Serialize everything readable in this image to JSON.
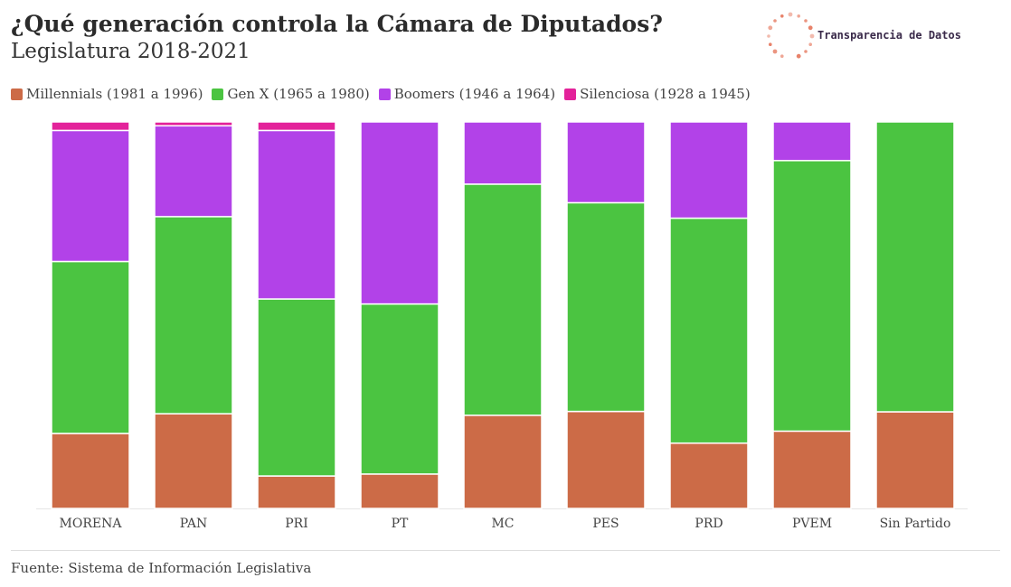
{
  "title": "¿Qué generación controla la Cámara de Diputados?",
  "subtitle": "Legislatura 2018-2021",
  "logo": {
    "text": "Transparencia de Datos",
    "icon": "dotted-circle-icon",
    "color": "#e8826a"
  },
  "source": "Fuente: Sistema de Información Legislativa",
  "chart_data": {
    "type": "bar",
    "stacked": true,
    "normalized": true,
    "categories": [
      "MORENA",
      "PAN",
      "PRI",
      "PT",
      "MC",
      "PES",
      "PRD",
      "PVEM",
      "Sin Partido"
    ],
    "ylim": [
      0,
      100
    ],
    "grid": false,
    "legend_position": "top-left",
    "series": [
      {
        "name": "Millennials (1981 a 1996)",
        "color": "#cc6b47",
        "values": [
          19.4,
          24.5,
          8.4,
          8.9,
          24.1,
          25.1,
          16.9,
          20.0,
          25.0
        ]
      },
      {
        "name": "Gen X (1965 a 1980)",
        "color": "#4bc441",
        "values": [
          44.5,
          51.0,
          45.8,
          44.0,
          59.8,
          54.0,
          58.2,
          70.0,
          75.0
        ]
      },
      {
        "name": "Boomers (1946 a 1964)",
        "color": "#b242e8",
        "values": [
          33.9,
          23.5,
          43.6,
          47.1,
          16.1,
          20.9,
          24.9,
          10.0,
          0
        ]
      },
      {
        "name": "Silenciosa (1928 a 1945)",
        "color": "#e3229a",
        "values": [
          2.2,
          1.0,
          2.2,
          0,
          0,
          0,
          0,
          0,
          0
        ]
      }
    ]
  }
}
